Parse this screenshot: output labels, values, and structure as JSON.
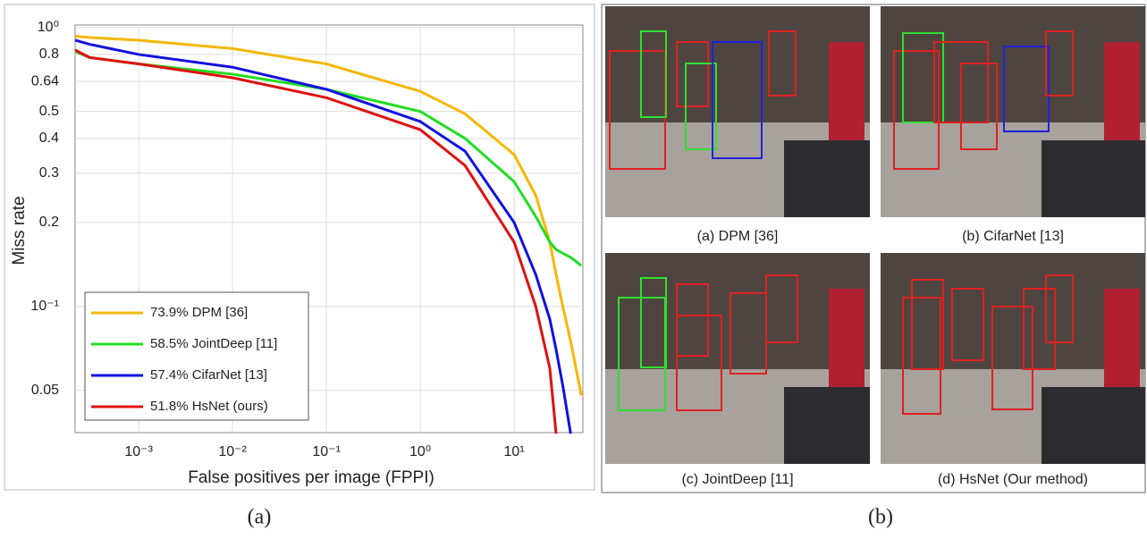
{
  "chart_data": {
    "type": "line",
    "xlabel": "False positives per image (FPPI)",
    "ylabel": "Miss rate",
    "xlog": true,
    "ylog": true,
    "grid": true,
    "legend": "lower left",
    "xlim": [
      0.00021,
      54
    ],
    "ylim": [
      0.0353,
      1.02
    ],
    "xticks": [
      {
        "value": 0.001,
        "label": "10⁻³"
      },
      {
        "value": 0.01,
        "label": "10⁻²"
      },
      {
        "value": 0.1,
        "label": "10⁻¹"
      },
      {
        "value": 1,
        "label": "10⁰"
      },
      {
        "value": 10,
        "label": "10¹"
      }
    ],
    "yticks": [
      {
        "value": 1,
        "label": "10⁰"
      },
      0.8,
      0.64,
      0.5,
      0.4,
      0.3,
      0.2,
      {
        "value": 0.1,
        "label": "10⁻¹"
      },
      0.05
    ],
    "x": [
      0.00021,
      0.0003,
      0.001,
      0.01,
      0.1,
      1,
      3,
      10,
      17,
      24,
      28,
      33,
      40,
      52
    ],
    "series": [
      {
        "name": "73.9% DPM [36]",
        "color": "#f5b700",
        "values": [
          0.93,
          0.92,
          0.9,
          0.84,
          0.74,
          0.59,
          0.49,
          0.35,
          0.25,
          0.17,
          0.13,
          0.1,
          0.075,
          0.048
        ]
      },
      {
        "name": "58.5% JointDeep [11]",
        "color": "#22dd22",
        "values": [
          0.82,
          0.78,
          0.74,
          0.68,
          0.6,
          0.5,
          0.4,
          0.28,
          0.21,
          0.17,
          0.16,
          0.155,
          0.15,
          0.14
        ]
      },
      {
        "name": "57.4% CifarNet [13]",
        "color": "#1010e0",
        "values": [
          0.9,
          0.87,
          0.8,
          0.72,
          0.6,
          0.46,
          0.36,
          0.2,
          0.13,
          0.09,
          0.07,
          0.052,
          0.035,
          null
        ]
      },
      {
        "name": "51.8% HsNet (ours)",
        "color": "#e01010",
        "values": [
          0.83,
          0.78,
          0.74,
          0.66,
          0.56,
          0.43,
          0.32,
          0.17,
          0.1,
          0.06,
          0.035,
          null,
          null,
          null
        ]
      }
    ]
  },
  "figure": {
    "label_a": "(a)",
    "label_b": "(b)",
    "captions": [
      "(a) DPM [36]",
      "(b)  CifarNet [13]",
      "(c) JointDeep [11]",
      "(d) HsNet (Our method)"
    ]
  }
}
